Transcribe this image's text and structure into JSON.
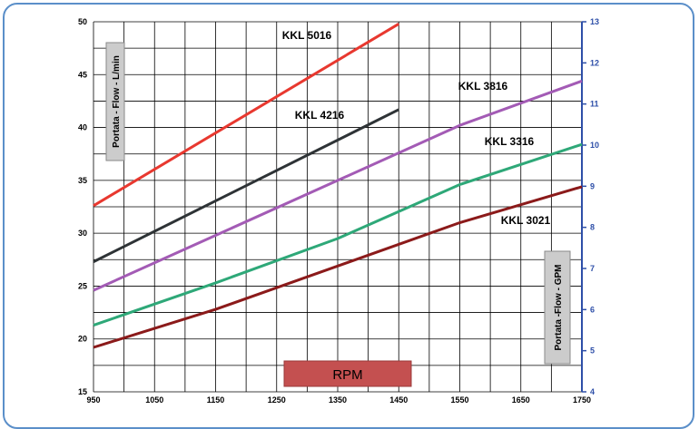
{
  "chart_data": {
    "type": "line",
    "x_axis": {
      "label": "RPM",
      "range": [
        950,
        1750
      ],
      "ticks": [
        950,
        1050,
        1150,
        1250,
        1350,
        1450,
        1550,
        1650,
        1750
      ]
    },
    "y_axis_left": {
      "label": "Portata - Flow - L/min",
      "range": [
        15,
        50
      ],
      "ticks": [
        15,
        20,
        25,
        30,
        35,
        40,
        45,
        50
      ]
    },
    "y_axis_right": {
      "label": "Portata -Flow - GPM",
      "range": [
        4,
        13
      ],
      "ticks": [
        4,
        5,
        6,
        7,
        8,
        9,
        10,
        11,
        12,
        13
      ]
    },
    "grid": true,
    "series": [
      {
        "name": "KKL 5016",
        "color": "#e8382f",
        "points": [
          [
            950,
            32.6
          ],
          [
            1450,
            49.8
          ]
        ]
      },
      {
        "name": "KKL 4216",
        "color": "#2e3336",
        "points": [
          [
            950,
            27.3
          ],
          [
            1450,
            41.7
          ]
        ]
      },
      {
        "name": "KKL 3816",
        "color": "#a35bb5",
        "points": [
          [
            950,
            24.6
          ],
          [
            1150,
            29.8
          ],
          [
            1350,
            35.0
          ],
          [
            1550,
            40.2
          ],
          [
            1750,
            44.4
          ]
        ]
      },
      {
        "name": "KKL 3316",
        "color": "#2ea878",
        "points": [
          [
            950,
            21.3
          ],
          [
            1150,
            25.3
          ],
          [
            1350,
            29.5
          ],
          [
            1550,
            34.6
          ],
          [
            1750,
            38.4
          ]
        ]
      },
      {
        "name": "KKL 3021",
        "color": "#8b1a1a",
        "points": [
          [
            950,
            19.2
          ],
          [
            1150,
            22.8
          ],
          [
            1350,
            26.9
          ],
          [
            1550,
            31.0
          ],
          [
            1750,
            34.4
          ]
        ]
      }
    ]
  }
}
